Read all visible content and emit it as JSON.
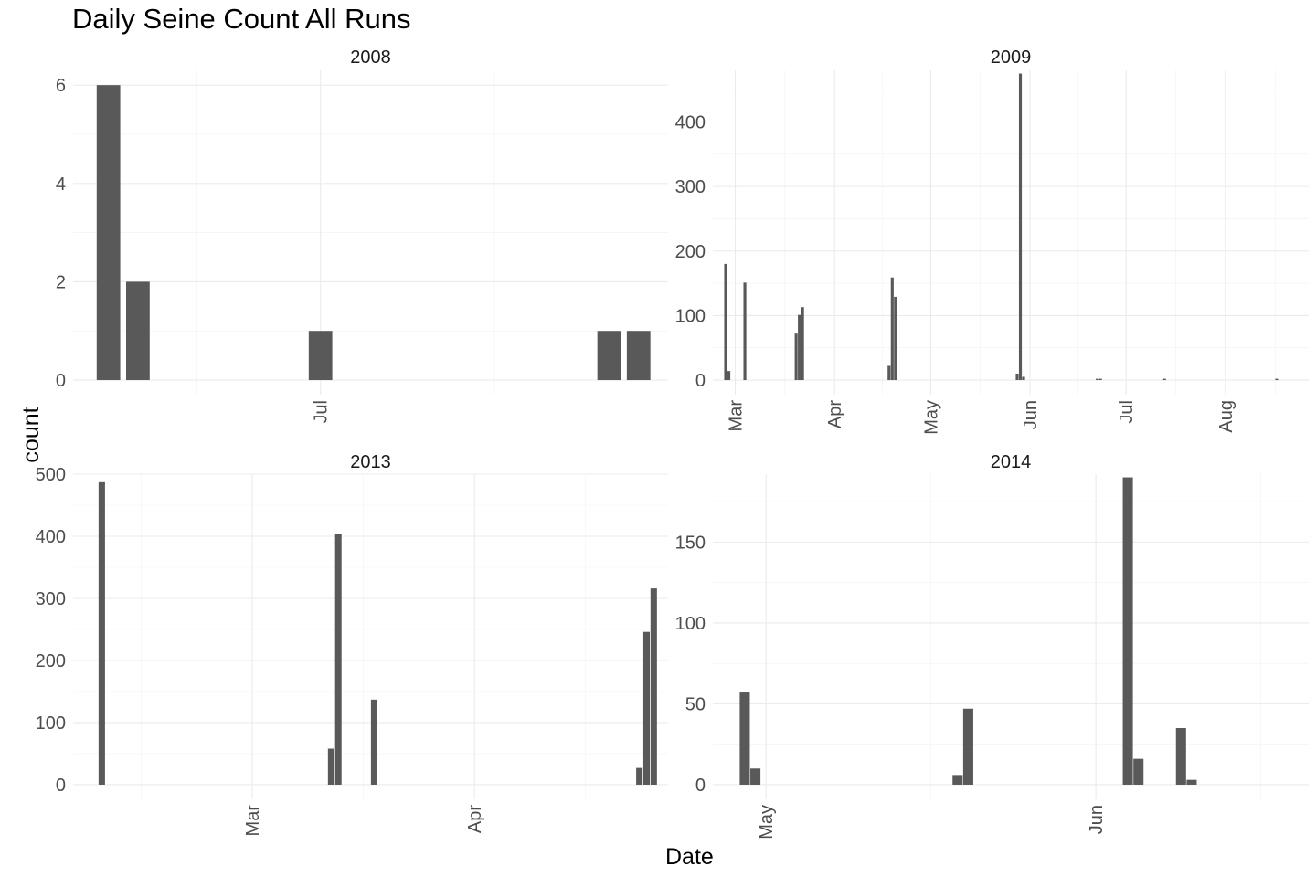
{
  "title": "Daily Seine Count All Runs",
  "xlabel": "Date",
  "ylabel": "count",
  "chart_data": [
    {
      "type": "bar",
      "facet": "2008",
      "xlim": [
        "2008-05-20",
        "2008-08-29"
      ],
      "ylim": [
        0,
        6.3
      ],
      "yticks": [
        0,
        2,
        4,
        6
      ],
      "xticks": [
        {
          "date": "2008-07-01",
          "label": "Jul"
        }
      ],
      "bar_width_days": 4,
      "bars": [
        {
          "date": "2008-05-26",
          "value": 6
        },
        {
          "date": "2008-05-31",
          "value": 2
        },
        {
          "date": "2008-07-01",
          "value": 1
        },
        {
          "date": "2008-08-19",
          "value": 1
        },
        {
          "date": "2008-08-24",
          "value": 1
        }
      ]
    },
    {
      "type": "bar",
      "facet": "2009",
      "xlim": [
        "2009-02-22",
        "2009-08-27"
      ],
      "ylim": [
        0,
        480
      ],
      "yticks": [
        0,
        100,
        200,
        300,
        400
      ],
      "xticks": [
        {
          "date": "2009-03-01",
          "label": "Mar"
        },
        {
          "date": "2009-04-01",
          "label": "Apr"
        },
        {
          "date": "2009-05-01",
          "label": "May"
        },
        {
          "date": "2009-06-01",
          "label": "Jun"
        },
        {
          "date": "2009-07-01",
          "label": "Jul"
        },
        {
          "date": "2009-08-01",
          "label": "Aug"
        }
      ],
      "bar_width_days": 0.9,
      "bars": [
        {
          "date": "2009-02-26",
          "value": 180
        },
        {
          "date": "2009-02-27",
          "value": 14
        },
        {
          "date": "2009-03-04",
          "value": 151
        },
        {
          "date": "2009-03-20",
          "value": 72
        },
        {
          "date": "2009-03-21",
          "value": 101
        },
        {
          "date": "2009-03-22",
          "value": 113
        },
        {
          "date": "2009-04-18",
          "value": 22
        },
        {
          "date": "2009-04-19",
          "value": 159
        },
        {
          "date": "2009-04-20",
          "value": 129
        },
        {
          "date": "2009-05-28",
          "value": 10
        },
        {
          "date": "2009-05-29",
          "value": 475
        },
        {
          "date": "2009-05-30",
          "value": 5
        },
        {
          "date": "2009-06-22",
          "value": 2
        },
        {
          "date": "2009-06-23",
          "value": 2
        },
        {
          "date": "2009-07-13",
          "value": 2
        },
        {
          "date": "2009-08-17",
          "value": 2
        }
      ]
    },
    {
      "type": "bar",
      "facet": "2013",
      "xlim": [
        "2013-02-04",
        "2013-04-28"
      ],
      "ylim": [
        0,
        500
      ],
      "yticks": [
        0,
        100,
        200,
        300,
        400,
        500
      ],
      "xticks": [
        {
          "date": "2013-03-01",
          "label": "Mar"
        },
        {
          "date": "2013-04-01",
          "label": "Apr"
        }
      ],
      "bar_width_days": 0.9,
      "bars": [
        {
          "date": "2013-02-08",
          "value": 487
        },
        {
          "date": "2013-03-12",
          "value": 58
        },
        {
          "date": "2013-03-13",
          "value": 404
        },
        {
          "date": "2013-03-18",
          "value": 137
        },
        {
          "date": "2013-04-24",
          "value": 27
        },
        {
          "date": "2013-04-25",
          "value": 246
        },
        {
          "date": "2013-04-26",
          "value": 316
        }
      ]
    },
    {
      "type": "bar",
      "facet": "2014",
      "xlim": [
        "2014-04-26",
        "2014-06-21"
      ],
      "ylim": [
        0,
        192
      ],
      "yticks": [
        0,
        50,
        100,
        150
      ],
      "xticks": [
        {
          "date": "2014-05-01",
          "label": "May"
        },
        {
          "date": "2014-06-01",
          "label": "Jun"
        }
      ],
      "bar_width_days": 0.95,
      "bars": [
        {
          "date": "2014-04-29",
          "value": 57
        },
        {
          "date": "2014-04-30",
          "value": 10
        },
        {
          "date": "2014-05-19",
          "value": 6
        },
        {
          "date": "2014-05-20",
          "value": 47
        },
        {
          "date": "2014-06-04",
          "value": 190
        },
        {
          "date": "2014-06-05",
          "value": 16
        },
        {
          "date": "2014-06-09",
          "value": 35
        },
        {
          "date": "2014-06-10",
          "value": 3
        }
      ]
    }
  ]
}
